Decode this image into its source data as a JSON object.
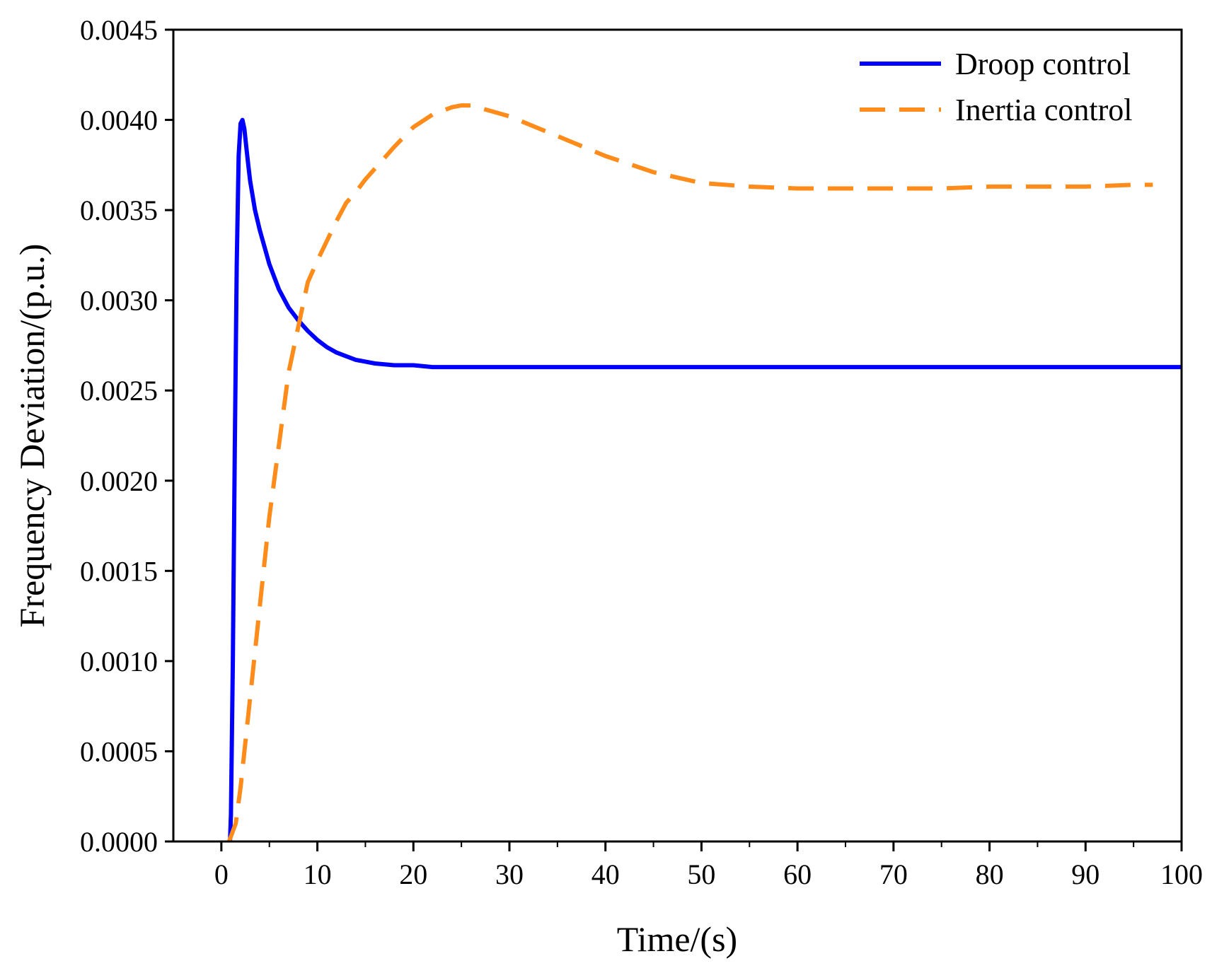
{
  "chart_data": {
    "type": "line",
    "title": "",
    "xlabel": "Time/(s)",
    "ylabel": "Frequency Deviation/(p.u.)",
    "xlim": [
      -5,
      100
    ],
    "ylim": [
      0.0,
      0.0045
    ],
    "xticks": [
      0,
      10,
      20,
      30,
      40,
      50,
      60,
      70,
      80,
      90,
      100
    ],
    "xtick_labels": [
      "0",
      "10",
      "20",
      "30",
      "40",
      "50",
      "60",
      "70",
      "80",
      "90",
      "100"
    ],
    "yticks": [
      0.0,
      0.0005,
      0.001,
      0.0015,
      0.002,
      0.0025,
      0.003,
      0.0035,
      0.004,
      0.0045
    ],
    "ytick_labels": [
      "0.0000",
      "0.0005",
      "0.0010",
      "0.0015",
      "0.0020",
      "0.0025",
      "0.0030",
      "0.0035",
      "0.0040",
      "0.0045"
    ],
    "grid": false,
    "legend_position": "top-right",
    "series": [
      {
        "name": "Droop control",
        "color": "#0000FF",
        "style": "solid",
        "x": [
          0.9,
          1.0,
          1.2,
          1.4,
          1.6,
          1.8,
          2.0,
          2.2,
          2.4,
          2.6,
          2.8,
          3.0,
          3.5,
          4,
          5,
          6,
          7,
          8,
          9,
          10,
          11,
          12,
          13,
          14,
          15,
          16,
          18,
          20,
          22,
          25,
          30,
          35,
          40,
          50,
          60,
          70,
          80,
          90,
          100
        ],
        "y": [
          0.0,
          0.00015,
          0.001,
          0.0022,
          0.0032,
          0.0038,
          0.00398,
          0.004,
          0.00395,
          0.00385,
          0.00375,
          0.00366,
          0.0035,
          0.00339,
          0.0032,
          0.00306,
          0.00296,
          0.00289,
          0.00283,
          0.00278,
          0.00274,
          0.00271,
          0.00269,
          0.00267,
          0.00266,
          0.00265,
          0.00264,
          0.00264,
          0.00263,
          0.00263,
          0.00263,
          0.00263,
          0.00263,
          0.00263,
          0.00263,
          0.00263,
          0.00263,
          0.00263,
          0.00263
        ]
      },
      {
        "name": "Inertia control",
        "color": "#FF8C1A",
        "style": "dashed",
        "x": [
          0.8,
          1.5,
          2,
          3,
          4,
          5,
          6,
          7,
          8,
          9,
          10,
          11,
          12,
          13,
          14,
          15,
          16,
          17,
          18,
          20,
          22,
          24,
          25,
          26,
          28,
          30,
          35,
          40,
          45,
          50,
          55,
          60,
          65,
          70,
          75,
          80,
          85,
          90,
          95,
          97
        ],
        "y": [
          0.0,
          0.0001,
          0.0003,
          0.0008,
          0.0013,
          0.0018,
          0.0022,
          0.0026,
          0.00285,
          0.0031,
          0.00322,
          0.00333,
          0.00344,
          0.00354,
          0.0036,
          0.00367,
          0.00373,
          0.00379,
          0.00385,
          0.00396,
          0.00403,
          0.00407,
          0.00408,
          0.00408,
          0.00405,
          0.00402,
          0.00391,
          0.0038,
          0.00371,
          0.00365,
          0.00363,
          0.00362,
          0.00362,
          0.00362,
          0.00362,
          0.00363,
          0.00363,
          0.00363,
          0.00364,
          0.00364
        ]
      }
    ]
  }
}
